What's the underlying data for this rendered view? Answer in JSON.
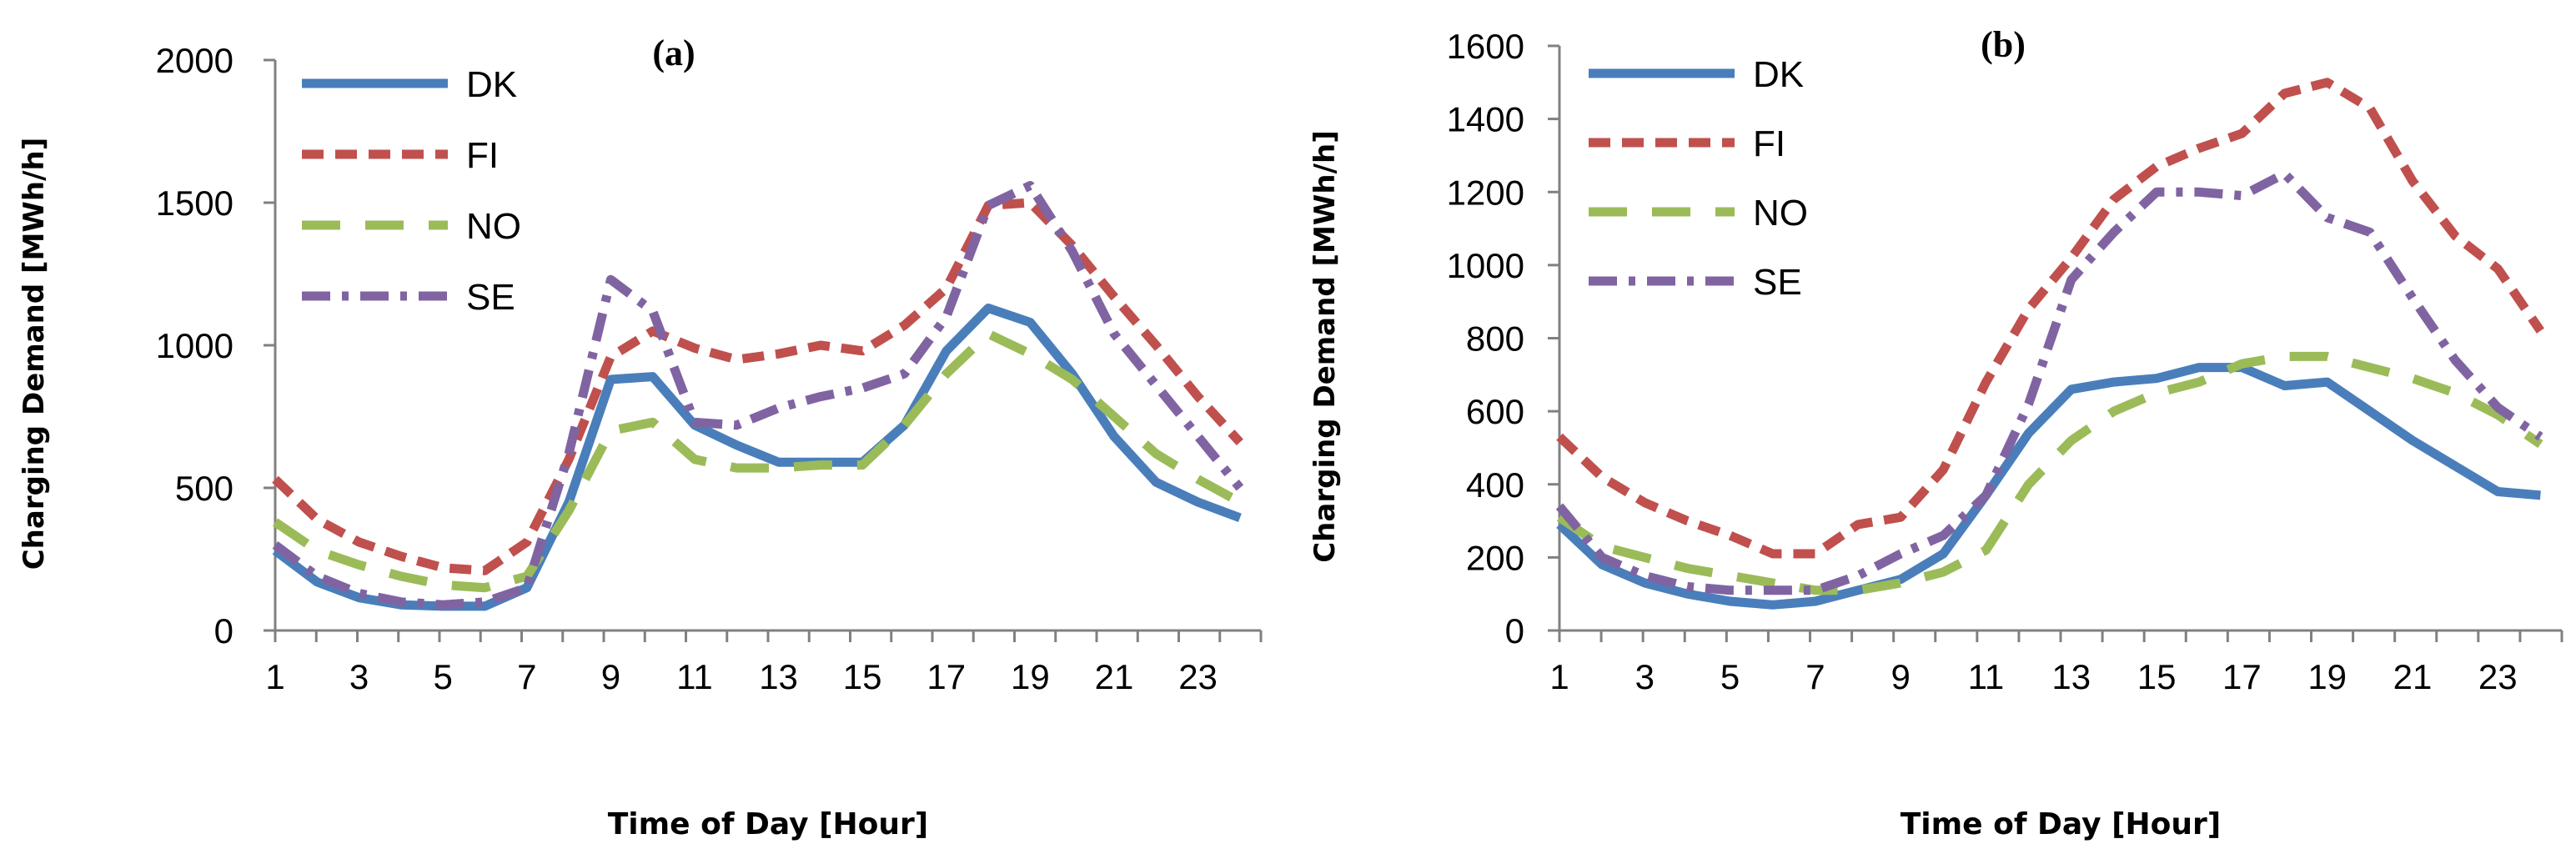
{
  "chart_data": [
    {
      "type": "line",
      "title": "(a)",
      "xlabel": "Time of Day [Hour]",
      "ylabel": "Charging Demand [MWh/h]",
      "x": [
        1,
        2,
        3,
        4,
        5,
        6,
        7,
        8,
        9,
        10,
        11,
        12,
        13,
        14,
        15,
        16,
        17,
        18,
        19,
        20,
        21,
        22,
        23,
        24
      ],
      "xticks": [
        "1",
        "3",
        "5",
        "7",
        "9",
        "11",
        "13",
        "15",
        "17",
        "19",
        "21",
        "23"
      ],
      "ylim": [
        0,
        2000
      ],
      "yticks": [
        "0",
        "500",
        "1000",
        "1500",
        "2000"
      ],
      "grid": false,
      "legend": "top-left",
      "series": [
        {
          "name": "DK",
          "color": "#4a7ebb",
          "style": "solid",
          "values": [
            280,
            170,
            115,
            90,
            85,
            85,
            150,
            450,
            880,
            890,
            720,
            650,
            590,
            590,
            590,
            720,
            980,
            1130,
            1080,
            900,
            680,
            520,
            450,
            395
          ]
        },
        {
          "name": "FI",
          "color": "#c0504d",
          "style": "dash",
          "values": [
            530,
            390,
            310,
            260,
            220,
            210,
            310,
            600,
            960,
            1050,
            990,
            950,
            970,
            1000,
            980,
            1070,
            1200,
            1490,
            1500,
            1350,
            1170,
            1000,
            820,
            660
          ]
        },
        {
          "name": "NO",
          "color": "#9bbb59",
          "style": "longdash",
          "values": [
            380,
            280,
            230,
            190,
            160,
            150,
            190,
            420,
            700,
            730,
            600,
            570,
            570,
            580,
            580,
            720,
            900,
            1040,
            970,
            880,
            750,
            620,
            530,
            450
          ]
        },
        {
          "name": "SE",
          "color": "#8064a2",
          "style": "dashdot",
          "values": [
            300,
            190,
            130,
            100,
            90,
            100,
            150,
            620,
            1230,
            1120,
            730,
            720,
            780,
            820,
            850,
            900,
            1100,
            1490,
            1560,
            1330,
            1040,
            860,
            680,
            500
          ]
        }
      ]
    },
    {
      "type": "line",
      "title": "(b)",
      "xlabel": "Time of Day [Hour]",
      "ylabel": "Charging Demand [MWh/h]",
      "x": [
        1,
        2,
        3,
        4,
        5,
        6,
        7,
        8,
        9,
        10,
        11,
        12,
        13,
        14,
        15,
        16,
        17,
        18,
        19,
        20,
        21,
        22,
        23,
        24
      ],
      "xticks": [
        "1",
        "3",
        "5",
        "7",
        "9",
        "11",
        "13",
        "15",
        "17",
        "19",
        "21",
        "23"
      ],
      "ylim": [
        0,
        1600
      ],
      "yticks": [
        "0",
        "200",
        "400",
        "600",
        "800",
        "1000",
        "1200",
        "1400",
        "1600"
      ],
      "grid": false,
      "legend": "top-left",
      "series": [
        {
          "name": "DK",
          "color": "#4a7ebb",
          "style": "solid",
          "values": [
            290,
            180,
            130,
            100,
            80,
            70,
            80,
            110,
            140,
            210,
            370,
            540,
            660,
            680,
            690,
            720,
            720,
            670,
            680,
            600,
            520,
            450,
            380,
            370
          ]
        },
        {
          "name": "FI",
          "color": "#c0504d",
          "style": "dash",
          "values": [
            530,
            420,
            350,
            300,
            260,
            210,
            210,
            290,
            310,
            440,
            680,
            880,
            1020,
            1180,
            1270,
            1320,
            1360,
            1470,
            1500,
            1430,
            1230,
            1080,
            990,
            820
          ]
        },
        {
          "name": "NO",
          "color": "#9bbb59",
          "style": "longdash",
          "values": [
            310,
            230,
            200,
            170,
            150,
            130,
            110,
            110,
            130,
            160,
            220,
            400,
            520,
            600,
            650,
            680,
            730,
            750,
            750,
            720,
            690,
            650,
            590,
            510
          ]
        },
        {
          "name": "SE",
          "color": "#8064a2",
          "style": "dashdot",
          "values": [
            340,
            200,
            150,
            120,
            110,
            110,
            110,
            150,
            210,
            260,
            370,
            620,
            960,
            1090,
            1200,
            1200,
            1190,
            1250,
            1130,
            1090,
            910,
            740,
            610,
            530
          ]
        }
      ]
    }
  ]
}
